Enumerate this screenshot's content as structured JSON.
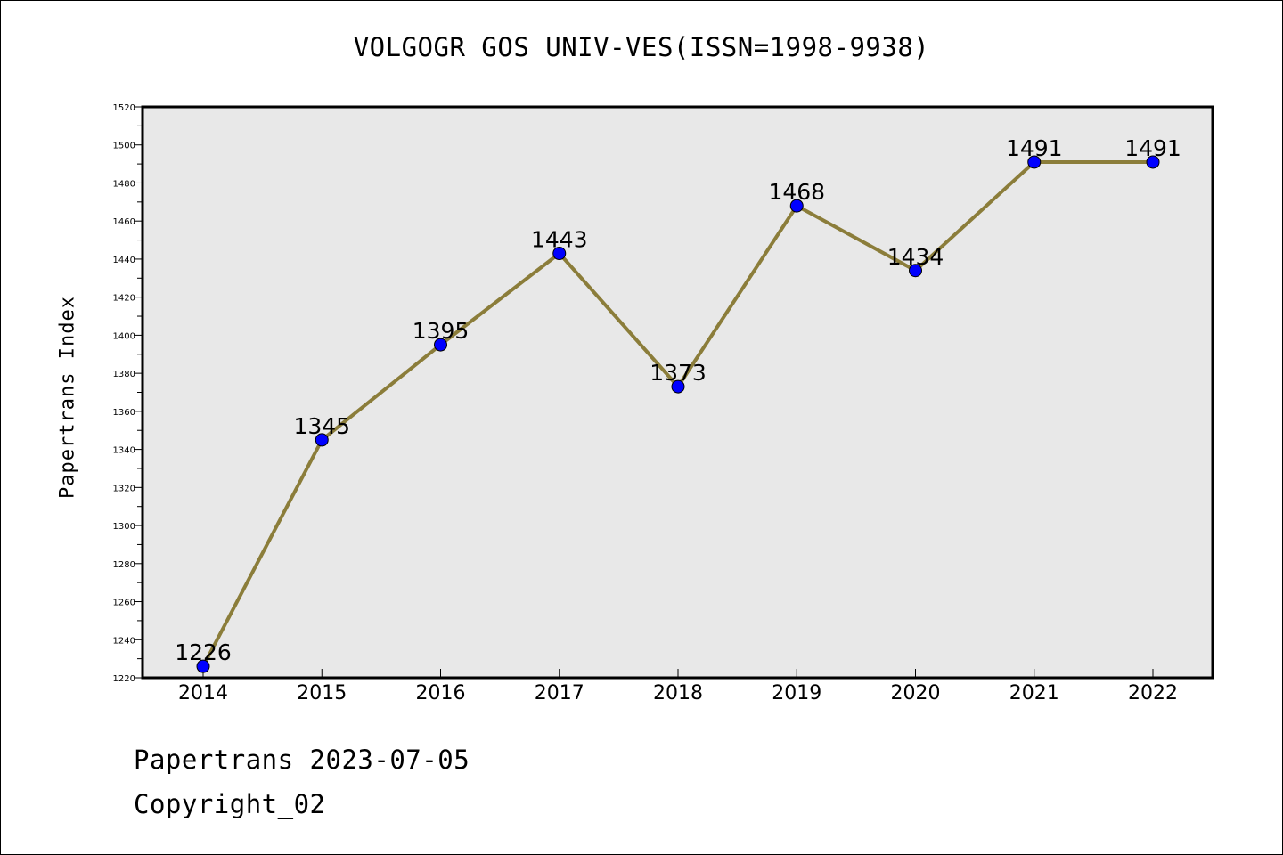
{
  "chart_data": {
    "type": "line",
    "title": "VOLGOGR GOS UNIV-VES(ISSN=1998-9938)",
    "xlabel": "",
    "ylabel": "Papertrans Index",
    "categories": [
      "2014",
      "2015",
      "2016",
      "2017",
      "2018",
      "2019",
      "2020",
      "2021",
      "2022"
    ],
    "values": [
      1226,
      1345,
      1395,
      1443,
      1373,
      1468,
      1434,
      1491,
      1491
    ],
    "data_labels": [
      "1226",
      "1345",
      "1395",
      "1443",
      "1373",
      "1468",
      "1434",
      "1491",
      "1491"
    ],
    "ylim": [
      1220,
      1520
    ],
    "y_ticks": [
      1220,
      1240,
      1260,
      1280,
      1300,
      1320,
      1340,
      1360,
      1380,
      1400,
      1420,
      1440,
      1460,
      1480,
      1500,
      1520
    ],
    "y_tick_labels": [
      "1220",
      "1240",
      "1260",
      "1280",
      "1300",
      "1320",
      "1340",
      "1360",
      "1380",
      "1400",
      "1420",
      "1440",
      "1460",
      "1480",
      "1500",
      "1520"
    ],
    "grid": false,
    "legend": "none",
    "colors": {
      "line": "#8b7d3a",
      "marker": "#0000ff",
      "plot_background": "#e8e8e8"
    }
  },
  "footer": {
    "date_text": "Papertrans 2023-07-05",
    "copyright_text": "Copyright_02"
  }
}
